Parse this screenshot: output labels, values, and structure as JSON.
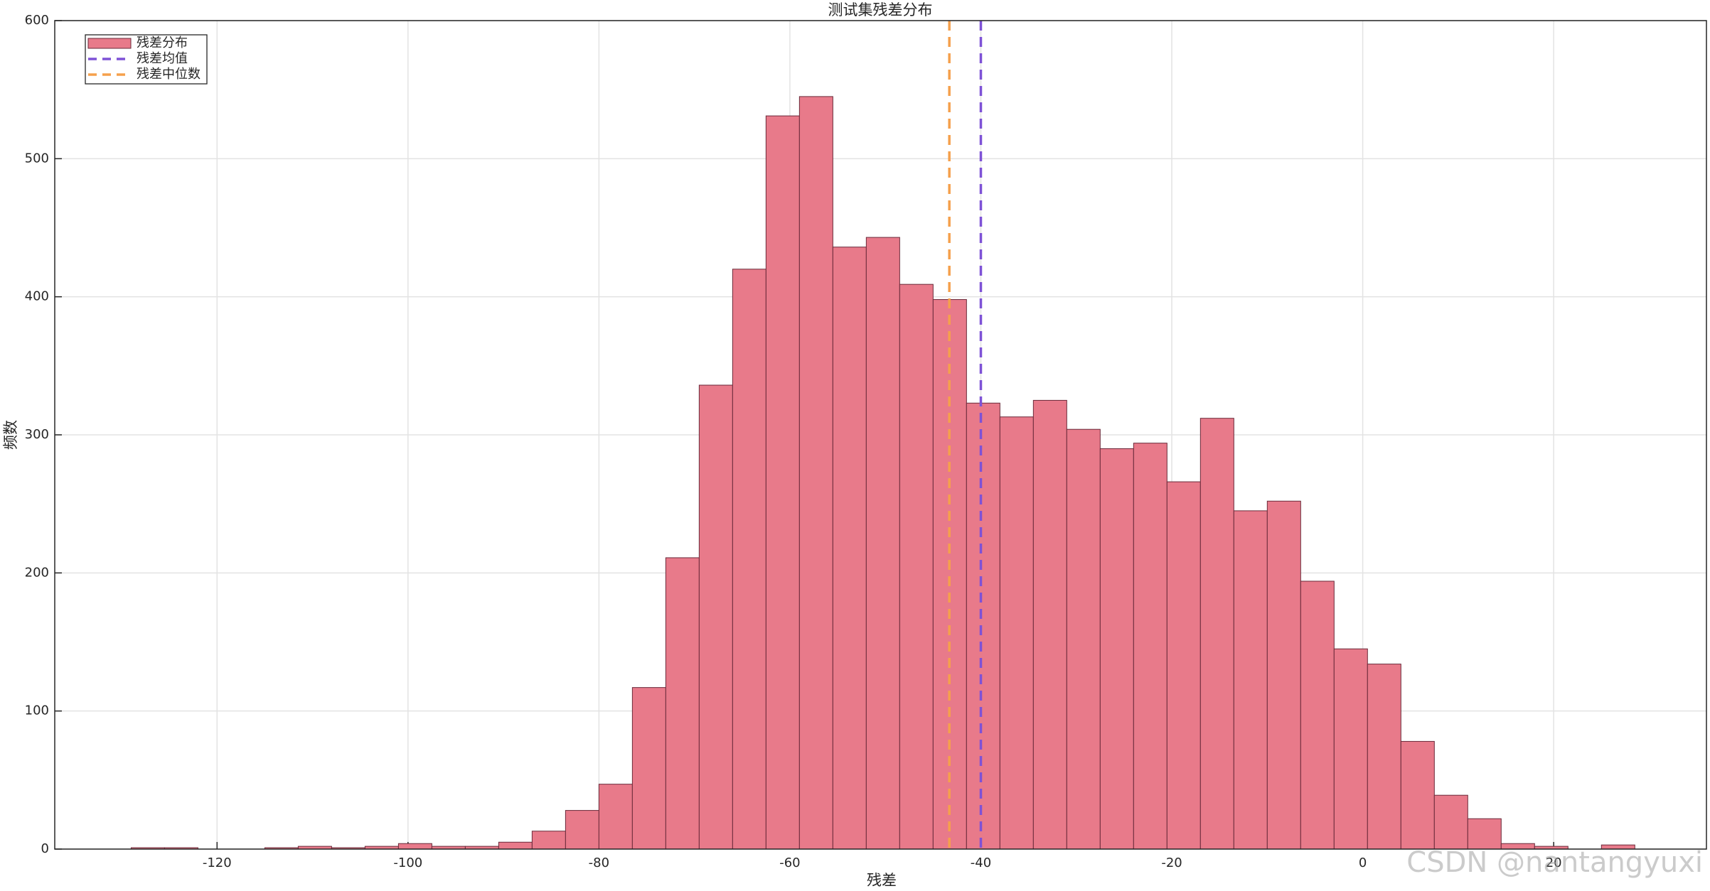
{
  "chart_data": {
    "type": "histogram",
    "title": "测试集残差分布",
    "xlabel": "残差",
    "ylabel": "频数",
    "bins": [
      -129,
      -125.5,
      -122,
      -118.5,
      -115,
      -111.5,
      -108,
      -104.5,
      -101,
      -97.5,
      -94,
      -90.5,
      -87,
      -83.5,
      -80,
      -76.5,
      -73,
      -69.5,
      -66,
      -62.5,
      -59,
      -55.5,
      -52,
      -48.5,
      -45,
      -41.5,
      -38,
      -34.5,
      -31,
      -27.5,
      -24,
      -20.5,
      -17,
      -13.5,
      -10,
      -6.5,
      -3,
      0.5,
      4,
      7.5,
      11,
      14.5,
      18,
      21.5,
      25,
      28.5
    ],
    "series": [
      {
        "name": "残差分布",
        "color": "#e87a8a",
        "edgecolor": "#6a2a3a",
        "values": [
          1,
          1,
          0,
          0,
          1,
          2,
          1,
          2,
          4,
          2,
          2,
          5,
          13,
          28,
          47,
          117,
          211,
          336,
          420,
          531,
          545,
          436,
          443,
          409,
          398,
          323,
          313,
          325,
          304,
          290,
          294,
          266,
          312,
          245,
          252,
          194,
          145,
          134,
          78,
          39,
          22,
          4,
          2,
          0,
          3
        ]
      }
    ],
    "lines": [
      {
        "name": "残差均值",
        "color": "#7e52d6",
        "value": -40
      },
      {
        "name": "残差中位数",
        "color": "#f5a04c",
        "value": -43.3
      }
    ],
    "xlim": [
      -137,
      36
    ],
    "ylim": [
      0,
      600
    ],
    "xticks": [
      -120,
      -100,
      -80,
      -60,
      -40,
      -20,
      0,
      20
    ],
    "yticks": [
      0,
      100,
      200,
      300,
      400,
      500,
      600
    ],
    "grid": true,
    "legend": "upper left",
    "watermark": "CSDN @nantangyuxi"
  }
}
